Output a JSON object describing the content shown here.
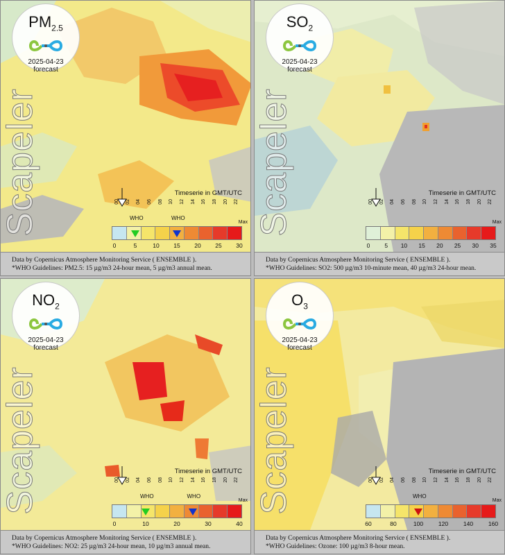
{
  "panels": [
    {
      "pollutant_main": "PM",
      "pollutant_sub": "2.5",
      "date": "2025-04-23",
      "forecast_label": "forecast",
      "brand": "Scapeler",
      "timeseries_label": "Timeserie in GMT/UTC",
      "hour_ticks": [
        "00",
        "02",
        "04",
        "06",
        "08",
        "10",
        "12",
        "14",
        "16",
        "18",
        "20",
        "22"
      ],
      "scale_ticks": [
        "0",
        "5",
        "10",
        "15",
        "20",
        "25",
        "30"
      ],
      "max_label": "Max",
      "who_markers": [
        {
          "label": "WHO",
          "value": 5,
          "color": "#22cc22"
        },
        {
          "label": "WHO",
          "value": 15,
          "color": "#1133cc"
        }
      ],
      "data_source": "Data by Copernicus Atmosphere Monitoring Service ( ENSEMBLE ).",
      "guideline": "*WHO Guidelines: PM2.5: 15 µg/m3 24-hour mean, 5 µg/m3 annual mean.",
      "colors": [
        "#c6e6f0",
        "#f3f1a8",
        "#f5e56a",
        "#f5d24a",
        "#f2b040",
        "#ee8a34",
        "#e9622e",
        "#e63a2a",
        "#e61a1a"
      ]
    },
    {
      "pollutant_main": "SO",
      "pollutant_sub": "2",
      "date": "2025-04-23",
      "forecast_label": "forecast",
      "brand": "Scapeler",
      "timeseries_label": "Timeserie in GMT/UTC",
      "hour_ticks": [
        "00",
        "02",
        "04",
        "06",
        "08",
        "10",
        "12",
        "14",
        "16",
        "18",
        "20",
        "22"
      ],
      "scale_ticks": [
        "0",
        "5",
        "10",
        "15",
        "20",
        "25",
        "30",
        "35"
      ],
      "max_label": "Max",
      "who_markers": [],
      "data_source": "Data by Copernicus Atmosphere Monitoring Service ( ENSEMBLE ).",
      "guideline": "*WHO Guidelines: SO2: 500 µg/m3 10-minute mean, 40 µg/m3 24-hour mean.",
      "colors": [
        "#dff0d8",
        "#f3f1a8",
        "#f5e56a",
        "#f5d24a",
        "#f2b040",
        "#ee8a34",
        "#e9622e",
        "#e63a2a",
        "#e61a1a"
      ]
    },
    {
      "pollutant_main": "NO",
      "pollutant_sub": "2",
      "date": "2025-04-23",
      "forecast_label": "forecast",
      "brand": "Scapeler",
      "timeseries_label": "Timeserie in GMT/UTC",
      "hour_ticks": [
        "00",
        "02",
        "04",
        "06",
        "08",
        "10",
        "12",
        "14",
        "16",
        "18",
        "20",
        "22"
      ],
      "scale_ticks": [
        "0",
        "10",
        "20",
        "30",
        "40"
      ],
      "max_label": "Max",
      "who_markers": [
        {
          "label": "WHO",
          "value": 10,
          "color": "#22cc22"
        },
        {
          "label": "WHO",
          "value": 25,
          "color": "#1133cc"
        }
      ],
      "data_source": "Data by Copernicus Atmosphere Monitoring Service ( ENSEMBLE ).",
      "guideline": "*WHO Guidelines: NO2: 25 µg/m3 24-hour mean, 10 µg/m3 annual mean.",
      "colors": [
        "#c6e6f0",
        "#f3f1a8",
        "#f5e56a",
        "#f5d24a",
        "#f2b040",
        "#ee8a34",
        "#e9622e",
        "#e63a2a",
        "#e61a1a"
      ]
    },
    {
      "pollutant_main": "O",
      "pollutant_sub": "3",
      "date": "2025-04-23",
      "forecast_label": "forecast",
      "brand": "Scapeler",
      "timeseries_label": "Timeserie in GMT/UTC",
      "hour_ticks": [
        "00",
        "02",
        "04",
        "06",
        "08",
        "10",
        "12",
        "14",
        "16",
        "18",
        "20",
        "22"
      ],
      "scale_ticks": [
        "60",
        "80",
        "100",
        "120",
        "140",
        "160"
      ],
      "max_label": "Max",
      "who_markers": [
        {
          "label": "WHO",
          "value": 100,
          "color": "#cc1111"
        }
      ],
      "data_source": "Data by Copernicus Atmosphere Monitoring Service ( ENSEMBLE ).",
      "guideline": "*WHO Guidelines: Ozone: 100 µg/m3 8-hour mean.",
      "colors": [
        "#c6e6f0",
        "#f3f1a8",
        "#f5e56a",
        "#f5d24a",
        "#f2b040",
        "#ee8a34",
        "#e9622e",
        "#e63a2a",
        "#e61a1a"
      ]
    }
  ]
}
